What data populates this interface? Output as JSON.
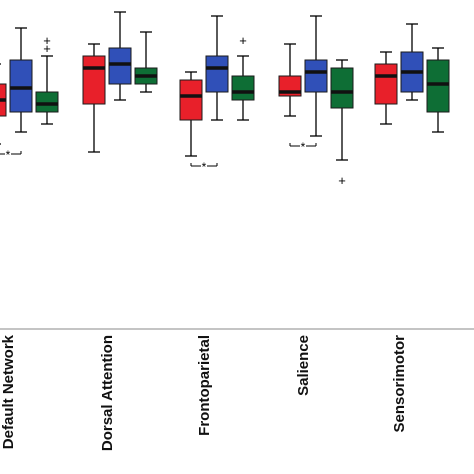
{
  "chart_data": {
    "type": "box",
    "title": "",
    "xlabel": "",
    "ylabel": "",
    "ylim": [
      -0.13,
      0.72
    ],
    "categories": [
      "Default Network",
      "Dorsal Attention",
      "Frontoparietal",
      "Salience",
      "Sensorimotor"
    ],
    "series_colors": [
      "#e8202a",
      "#3050b8",
      "#0e6e35"
    ],
    "groups": [
      {
        "category": "Default Network",
        "boxes": [
          {
            "color_index": 0,
            "whisker_low": 0.36,
            "q1": 0.43,
            "median": 0.47,
            "q3": 0.51,
            "whisker_high": 0.56,
            "outliers": []
          },
          {
            "color_index": 1,
            "whisker_low": 0.39,
            "q1": 0.44,
            "median": 0.5,
            "q3": 0.57,
            "whisker_high": 0.65,
            "outliers": []
          },
          {
            "color_index": 2,
            "whisker_low": 0.41,
            "q1": 0.44,
            "median": 0.46,
            "q3": 0.49,
            "whisker_high": 0.58,
            "outliers": [
              0.6,
              0.62
            ]
          }
        ],
        "significance": [
          {
            "pair": [
              0,
              1
            ],
            "label": "*"
          }
        ]
      },
      {
        "category": "Dorsal Attention",
        "boxes": [
          {
            "color_index": 0,
            "whisker_low": 0.34,
            "q1": 0.46,
            "median": 0.55,
            "q3": 0.58,
            "whisker_high": 0.61,
            "outliers": []
          },
          {
            "color_index": 1,
            "whisker_low": 0.47,
            "q1": 0.51,
            "median": 0.56,
            "q3": 0.6,
            "whisker_high": 0.69,
            "outliers": []
          },
          {
            "color_index": 2,
            "whisker_low": 0.49,
            "q1": 0.51,
            "median": 0.53,
            "q3": 0.55,
            "whisker_high": 0.64,
            "outliers": []
          }
        ]
      },
      {
        "category": "Frontoparietal",
        "boxes": [
          {
            "color_index": 0,
            "whisker_low": 0.33,
            "q1": 0.42,
            "median": 0.48,
            "q3": 0.52,
            "whisker_high": 0.54,
            "outliers": []
          },
          {
            "color_index": 1,
            "whisker_low": 0.42,
            "q1": 0.49,
            "median": 0.55,
            "q3": 0.58,
            "whisker_high": 0.68,
            "outliers": []
          },
          {
            "color_index": 2,
            "whisker_low": 0.42,
            "q1": 0.47,
            "median": 0.49,
            "q3": 0.53,
            "whisker_high": 0.58,
            "outliers": [
              0.62
            ]
          }
        ],
        "significance": [
          {
            "pair": [
              0,
              1
            ],
            "label": "*"
          }
        ]
      },
      {
        "category": "Salience",
        "boxes": [
          {
            "color_index": 0,
            "whisker_low": 0.43,
            "q1": 0.48,
            "median": 0.49,
            "q3": 0.53,
            "whisker_high": 0.61,
            "outliers": []
          },
          {
            "color_index": 1,
            "whisker_low": 0.38,
            "q1": 0.49,
            "median": 0.54,
            "q3": 0.57,
            "whisker_high": 0.68,
            "outliers": []
          },
          {
            "color_index": 2,
            "whisker_low": 0.32,
            "q1": 0.45,
            "median": 0.49,
            "q3": 0.55,
            "whisker_high": 0.57,
            "outliers": [
              0.27
            ]
          }
        ],
        "significance": [
          {
            "pair": [
              0,
              1
            ],
            "label": "*"
          }
        ]
      },
      {
        "category": "Sensorimotor",
        "boxes": [
          {
            "color_index": 0,
            "whisker_low": 0.41,
            "q1": 0.46,
            "median": 0.53,
            "q3": 0.56,
            "whisker_high": 0.59,
            "outliers": []
          },
          {
            "color_index": 1,
            "whisker_low": 0.47,
            "q1": 0.49,
            "median": 0.54,
            "q3": 0.59,
            "whisker_high": 0.66,
            "outliers": []
          },
          {
            "color_index": 2,
            "whisker_low": 0.39,
            "q1": 0.44,
            "median": 0.51,
            "q3": 0.57,
            "whisker_high": 0.6,
            "outliers": []
          }
        ]
      }
    ]
  }
}
